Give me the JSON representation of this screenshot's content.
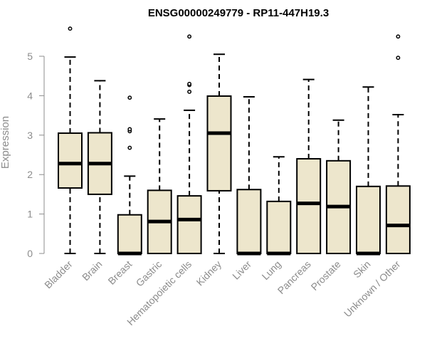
{
  "chart_data": {
    "type": "boxplot",
    "title": "ENSG00000249779 - RP11-447H19.3",
    "ylabel": "Expression",
    "ylim": [
      0,
      5.8
    ],
    "yticks": [
      0,
      1,
      2,
      3,
      4,
      5
    ],
    "box_fill": "#ede6cc",
    "categories": [
      "Bladder",
      "Brain",
      "Breast",
      "Gastric",
      "Hematopoietic cells",
      "Kidney",
      "Liver",
      "Lung",
      "Pancreas",
      "Prostate",
      "Skin",
      "Unknown / Other"
    ],
    "boxes": [
      {
        "min": 0,
        "q1": 1.66,
        "median": 2.28,
        "q3": 3.05,
        "max": 4.98,
        "outliers": [
          5.7
        ]
      },
      {
        "min": 0,
        "q1": 1.5,
        "median": 2.28,
        "q3": 3.06,
        "max": 4.38,
        "outliers": []
      },
      {
        "min": 0,
        "q1": 0,
        "median": 0,
        "q3": 0.98,
        "max": 1.96,
        "outliers": [
          2.68,
          3.1,
          3.15,
          3.95
        ]
      },
      {
        "min": 0,
        "q1": 0,
        "median": 0.81,
        "q3": 1.6,
        "max": 3.41,
        "outliers": []
      },
      {
        "min": 0,
        "q1": 0,
        "median": 0.86,
        "q3": 1.46,
        "max": 3.63,
        "outliers": [
          4.1,
          4.27,
          4.3,
          5.5
        ]
      },
      {
        "min": 0,
        "q1": 1.59,
        "median": 3.05,
        "q3": 3.99,
        "max": 5.05,
        "outliers": []
      },
      {
        "min": 0,
        "q1": 0,
        "median": 0,
        "q3": 1.62,
        "max": 3.97,
        "outliers": []
      },
      {
        "min": 0,
        "q1": 0,
        "median": 0,
        "q3": 1.32,
        "max": 2.45,
        "outliers": []
      },
      {
        "min": 0,
        "q1": 0,
        "median": 1.27,
        "q3": 2.4,
        "max": 4.41,
        "outliers": []
      },
      {
        "min": 0,
        "q1": 0,
        "median": 1.19,
        "q3": 2.35,
        "max": 3.38,
        "outliers": []
      },
      {
        "min": 0,
        "q1": 0,
        "median": 0,
        "q3": 1.7,
        "max": 4.22,
        "outliers": []
      },
      {
        "min": 0,
        "q1": 0,
        "median": 0.71,
        "q3": 1.71,
        "max": 3.52,
        "outliers": [
          4.96,
          5.5
        ]
      }
    ]
  }
}
